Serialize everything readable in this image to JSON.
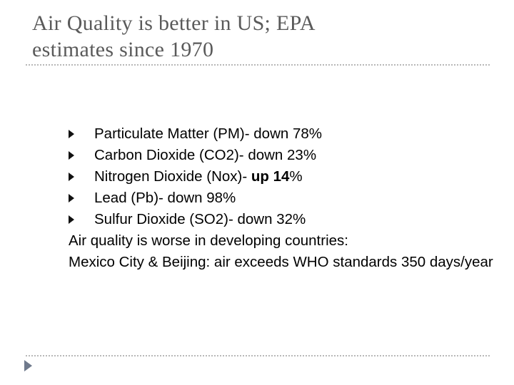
{
  "title": {
    "line1": "Air Quality is better in US; EPA",
    "line2": "estimates since 1970"
  },
  "bullets": [
    {
      "text": "Particulate Matter (PM)- down 78%"
    },
    {
      "text": "Carbon Dioxide (CO2)- down 23%"
    },
    {
      "prefix": "Nitrogen Dioxide (Nox)- ",
      "bold": "up 14",
      "suffix": "%"
    },
    {
      "text": "Lead (Pb)- down 98%"
    },
    {
      "text": "Sulfur Dioxide (SO2)- down 32%"
    }
  ],
  "paragraphs": {
    "developing": "Air quality is worse in developing countries:",
    "cities": "Mexico City & Beijing: air exceeds WHO standards 350 days/year"
  },
  "icons": {
    "bullet": "triangle-right-icon",
    "nav": "nav-arrow-icon"
  },
  "colors": {
    "title": "#5a5a5a",
    "rule": "#b8b8b8",
    "nav_arrow": "#6f7a8c"
  }
}
